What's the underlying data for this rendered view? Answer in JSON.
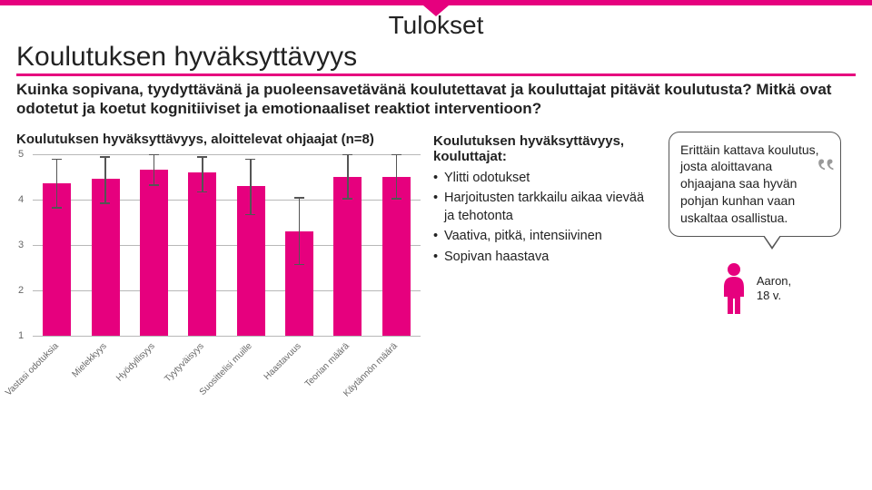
{
  "top_stripe_color": "#e6007e",
  "title": "Tulokset",
  "subtitle": "Koulutuksen hyväksyttävyys",
  "question": "Kuinka sopivana, tyydyttävänä ja puoleensavetävänä koulutettavat ja kouluttajat pitävät koulutusta? Mitkä ovat odotetut ja koetut kognitiiviset ja emotionaaliset reaktiot interventioon?",
  "chart": {
    "type": "bar",
    "title": "Koulutuksen hyväksyttävyys, aloittelevat ohjaajat (n=8)",
    "categories": [
      "Vastasi odotuksia",
      "Mielekkyys",
      "Hyödyllisyys",
      "Tyytyväisyys",
      "Suosittelisi muille",
      "Haastavuus",
      "Teorian määrä",
      "Käytännön määrä"
    ],
    "values": [
      4.35,
      4.45,
      4.65,
      4.6,
      4.3,
      3.3,
      4.5,
      4.5
    ],
    "err_low": [
      0.55,
      0.55,
      0.35,
      0.45,
      0.65,
      0.75,
      0.5,
      0.5
    ],
    "err_high": [
      0.55,
      0.5,
      0.35,
      0.35,
      0.6,
      0.75,
      0.5,
      0.5
    ],
    "bar_color": "#e6007e",
    "err_color": "#555555",
    "grid_color": "#b8b8b8",
    "background_color": "#ffffff",
    "ylim": [
      1,
      5
    ],
    "yticks": [
      1,
      2,
      3,
      4,
      5
    ],
    "bar_width_ratio": 0.58,
    "label_fontsize": 10,
    "tick_fontsize": 11
  },
  "textblock": {
    "title": "Koulutuksen hyväksyttävyys, kouluttajat:",
    "bullets": [
      "Ylitti odotukset",
      "Harjoitusten tarkkailu aikaa vievää ja tehotonta",
      "Vaativa, pitkä, intensiivinen",
      "Sopivan haastava"
    ]
  },
  "quote": {
    "text": "Erittäin kattava koulutus, josta aloittavana ohjaajana saa hyvän pohjan kunhan vaan uskaltaa osallistua.",
    "name": "Aaron,",
    "age": "18 v."
  },
  "person_icon_color": "#e6007e"
}
